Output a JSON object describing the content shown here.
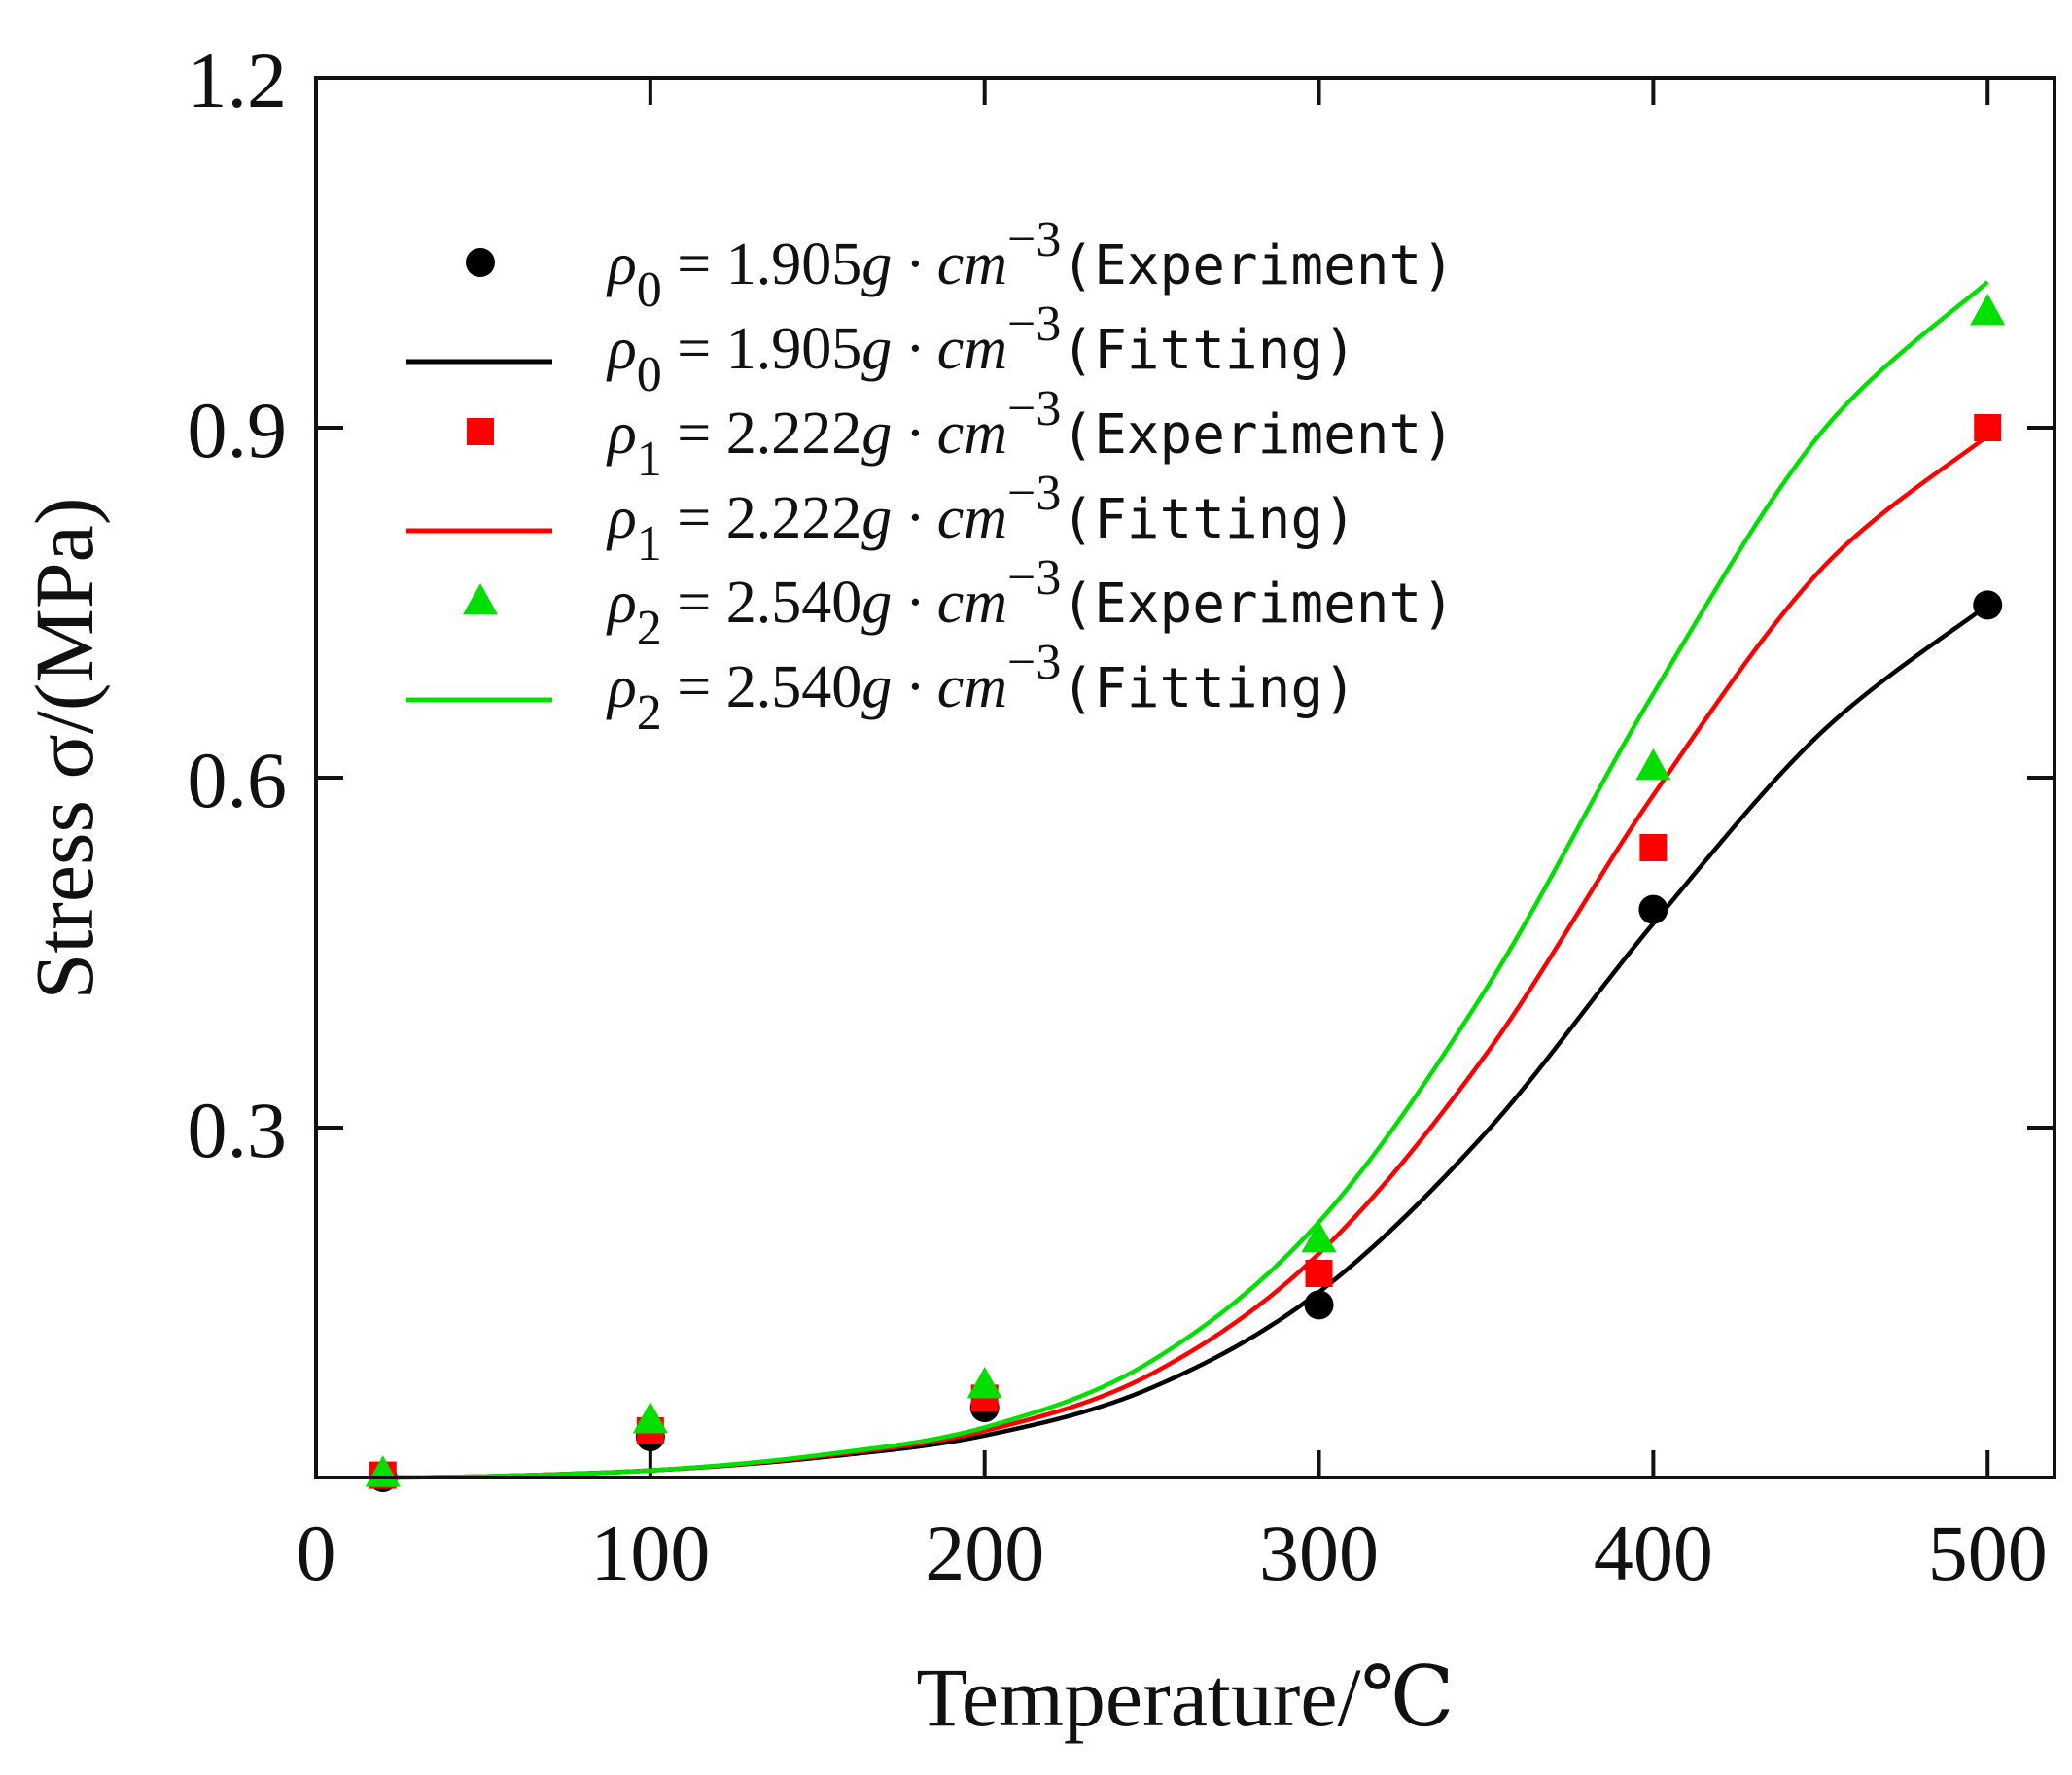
{
  "chart_data": {
    "type": "scatter",
    "title": "",
    "xlabel": "Temperature/℃",
    "ylabel": "Stress σ/(MPa)",
    "xlim": [
      0,
      520
    ],
    "ylim": [
      0,
      1.2
    ],
    "xticks": [
      0,
      100,
      200,
      300,
      400,
      500
    ],
    "xtick_labels": [
      "0",
      "100",
      "200",
      "300",
      "400",
      "500"
    ],
    "yticks": [
      0.3,
      0.6,
      0.9,
      1.2
    ],
    "ytick_labels": [
      "0.3",
      "0.6",
      "0.9",
      "1.2"
    ],
    "legend_position": "top-left",
    "series": [
      {
        "name": "rho0-experiment",
        "kind": "points",
        "marker": "circle",
        "color": "#000000",
        "x": [
          20,
          100,
          200,
          300,
          400,
          500
        ],
        "y": [
          0.0,
          0.035,
          0.06,
          0.148,
          0.487,
          0.748
        ],
        "legend": {
          "symbol": "ρ",
          "sub": "0",
          "value": " = 1.905",
          "unit": "g · cm",
          "sup": "−3",
          "desc": "(Experiment)"
        }
      },
      {
        "name": "rho0-fitting",
        "kind": "line",
        "color": "#000000",
        "x": [
          20,
          50,
          100,
          150,
          200,
          250,
          300,
          350,
          400,
          450,
          500
        ],
        "y": [
          0.0,
          0.001,
          0.006,
          0.017,
          0.036,
          0.077,
          0.159,
          0.296,
          0.475,
          0.638,
          0.748
        ],
        "legend": {
          "symbol": "ρ",
          "sub": "0",
          "value": " = 1.905",
          "unit": "g · cm",
          "sup": "−3",
          "desc": "(Fitting)"
        }
      },
      {
        "name": "rho1-experiment",
        "kind": "points",
        "marker": "square",
        "color": "#ff0000",
        "x": [
          20,
          100,
          200,
          300,
          400,
          500
        ],
        "y": [
          0.002,
          0.04,
          0.068,
          0.175,
          0.54,
          0.9
        ],
        "legend": {
          "symbol": "ρ",
          "sub": "1",
          "value": " = 2.222",
          "unit": "g · cm",
          "sup": "−3",
          "desc": "(Experiment)"
        }
      },
      {
        "name": "rho1-fitting",
        "kind": "line",
        "color": "#ff0000",
        "x": [
          20,
          50,
          100,
          150,
          200,
          250,
          300,
          350,
          400,
          450,
          500
        ],
        "y": [
          0.0,
          0.001,
          0.006,
          0.018,
          0.04,
          0.089,
          0.192,
          0.363,
          0.585,
          0.778,
          0.893
        ],
        "legend": {
          "symbol": "ρ",
          "sub": "1",
          "value": " = 2.222",
          "unit": "g · cm",
          "sup": "−3",
          "desc": "(Fitting)"
        }
      },
      {
        "name": "rho2-experiment",
        "kind": "points",
        "marker": "triangle",
        "color": "#00e000",
        "x": [
          20,
          100,
          200,
          300,
          400,
          500
        ],
        "y": [
          0.004,
          0.05,
          0.08,
          0.205,
          0.61,
          1.0
        ],
        "legend": {
          "symbol": "ρ",
          "sub": "2",
          "value": " = 2.540",
          "unit": "g · cm",
          "sup": "−3",
          "desc": "(Experiment)"
        }
      },
      {
        "name": "rho2-fitting",
        "kind": "line",
        "color": "#00e000",
        "x": [
          20,
          50,
          100,
          150,
          200,
          250,
          300,
          350,
          400,
          450,
          500
        ],
        "y": [
          0.0,
          0.001,
          0.006,
          0.019,
          0.043,
          0.1,
          0.219,
          0.419,
          0.672,
          0.895,
          1.025
        ],
        "legend": {
          "symbol": "ρ",
          "sub": "2",
          "value": " = 2.540",
          "unit": "g · cm",
          "sup": "−3",
          "desc": "(Fitting)"
        }
      }
    ]
  }
}
